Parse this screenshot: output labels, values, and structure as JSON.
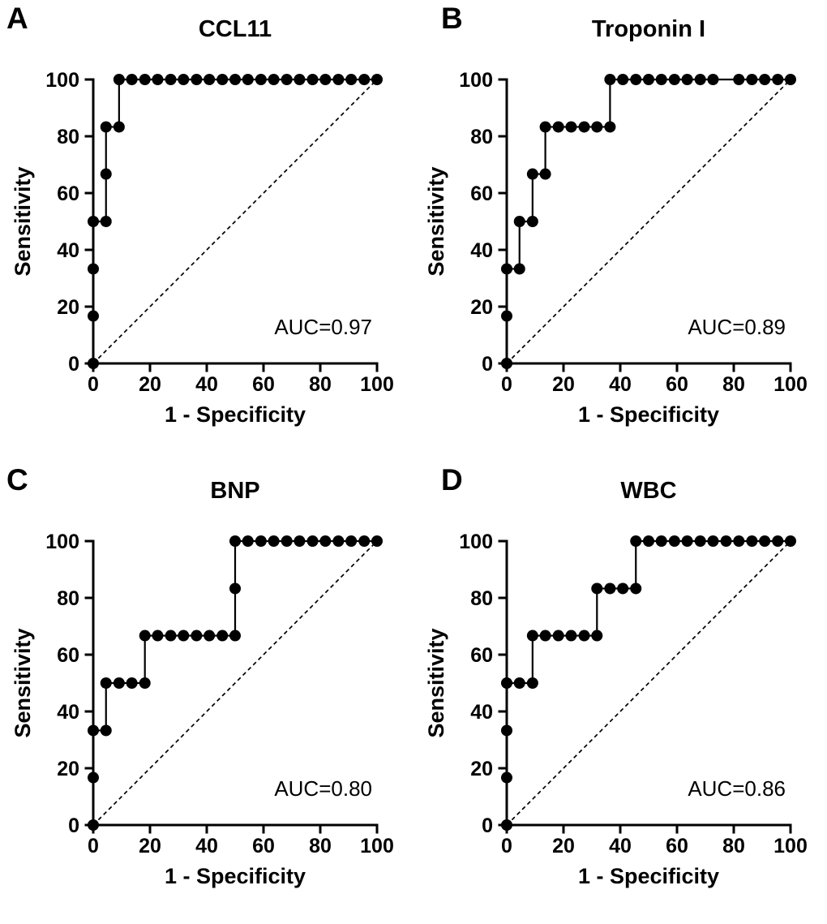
{
  "figure": {
    "background_color": "#ffffff",
    "ink_color": "#000000",
    "marker_color": "#000000",
    "panels": [
      "A",
      "B",
      "C",
      "D"
    ]
  },
  "chart_data": [
    {
      "type": "line",
      "subtype": "roc-curve",
      "panel_label": "A",
      "title": "CCL11",
      "xlabel": "1 - Specificity",
      "ylabel": "Sensitivity",
      "xlim": [
        0,
        100
      ],
      "ylim": [
        0,
        100
      ],
      "xticks": [
        0,
        20,
        40,
        60,
        80,
        100
      ],
      "yticks": [
        0,
        20,
        40,
        60,
        80,
        100
      ],
      "auc_label": "AUC=0.97",
      "auc_value": 0.97,
      "diagonal_reference": true,
      "marker": "filled-circle",
      "legend": "none",
      "grid": false,
      "roc_points": [
        [
          0,
          0
        ],
        [
          0,
          16.7
        ],
        [
          0,
          33.3
        ],
        [
          0,
          50
        ],
        [
          4.5,
          50
        ],
        [
          4.5,
          66.7
        ],
        [
          4.5,
          83.3
        ],
        [
          9.1,
          83.3
        ],
        [
          9.1,
          100
        ],
        [
          13.6,
          100
        ],
        [
          18.2,
          100
        ],
        [
          22.7,
          100
        ],
        [
          27.3,
          100
        ],
        [
          31.8,
          100
        ],
        [
          36.4,
          100
        ],
        [
          40.9,
          100
        ],
        [
          45.5,
          100
        ],
        [
          50,
          100
        ],
        [
          54.5,
          100
        ],
        [
          59.1,
          100
        ],
        [
          63.6,
          100
        ],
        [
          68.2,
          100
        ],
        [
          72.7,
          100
        ],
        [
          77.3,
          100
        ],
        [
          81.8,
          100
        ],
        [
          86.4,
          100
        ],
        [
          90.9,
          100
        ],
        [
          95.5,
          100
        ],
        [
          100,
          100
        ]
      ]
    },
    {
      "type": "line",
      "subtype": "roc-curve",
      "panel_label": "B",
      "title": "Troponin I",
      "xlabel": "1 - Specificity",
      "ylabel": "Sensitivity",
      "xlim": [
        0,
        100
      ],
      "ylim": [
        0,
        100
      ],
      "xticks": [
        0,
        20,
        40,
        60,
        80,
        100
      ],
      "yticks": [
        0,
        20,
        40,
        60,
        80,
        100
      ],
      "auc_label": "AUC=0.89",
      "auc_value": 0.89,
      "diagonal_reference": true,
      "marker": "filled-circle",
      "legend": "none",
      "grid": false,
      "roc_points": [
        [
          0,
          0
        ],
        [
          0,
          16.7
        ],
        [
          0,
          33.3
        ],
        [
          4.5,
          33.3
        ],
        [
          4.5,
          50
        ],
        [
          9.1,
          50
        ],
        [
          9.1,
          66.7
        ],
        [
          13.6,
          66.7
        ],
        [
          13.6,
          83.3
        ],
        [
          18.2,
          83.3
        ],
        [
          22.7,
          83.3
        ],
        [
          27.3,
          83.3
        ],
        [
          31.8,
          83.3
        ],
        [
          36.4,
          83.3
        ],
        [
          36.4,
          100
        ],
        [
          40.9,
          100
        ],
        [
          45.5,
          100
        ],
        [
          50,
          100
        ],
        [
          54.5,
          100
        ],
        [
          59.1,
          100
        ],
        [
          63.6,
          100
        ],
        [
          68.2,
          100
        ],
        [
          72.7,
          100
        ],
        [
          81.8,
          100
        ],
        [
          86.4,
          100
        ],
        [
          90.9,
          100
        ],
        [
          95.5,
          100
        ],
        [
          100,
          100
        ]
      ]
    },
    {
      "type": "line",
      "subtype": "roc-curve",
      "panel_label": "C",
      "title": "BNP",
      "xlabel": "1 - Specificity",
      "ylabel": "Sensitivity",
      "xlim": [
        0,
        100
      ],
      "ylim": [
        0,
        100
      ],
      "xticks": [
        0,
        20,
        40,
        60,
        80,
        100
      ],
      "yticks": [
        0,
        20,
        40,
        60,
        80,
        100
      ],
      "auc_label": "AUC=0.80",
      "auc_value": 0.8,
      "diagonal_reference": true,
      "marker": "filled-circle",
      "legend": "none",
      "grid": false,
      "roc_points": [
        [
          0,
          0
        ],
        [
          0,
          16.7
        ],
        [
          0,
          33.3
        ],
        [
          4.5,
          33.3
        ],
        [
          4.5,
          50
        ],
        [
          9.1,
          50
        ],
        [
          13.6,
          50
        ],
        [
          18.2,
          50
        ],
        [
          18.2,
          66.7
        ],
        [
          22.7,
          66.7
        ],
        [
          27.3,
          66.7
        ],
        [
          31.8,
          66.7
        ],
        [
          36.4,
          66.7
        ],
        [
          40.9,
          66.7
        ],
        [
          45.5,
          66.7
        ],
        [
          50,
          66.7
        ],
        [
          50,
          83.3
        ],
        [
          50,
          100
        ],
        [
          54.5,
          100
        ],
        [
          59.1,
          100
        ],
        [
          63.6,
          100
        ],
        [
          68.2,
          100
        ],
        [
          72.7,
          100
        ],
        [
          77.3,
          100
        ],
        [
          81.8,
          100
        ],
        [
          86.4,
          100
        ],
        [
          90.9,
          100
        ],
        [
          95.5,
          100
        ],
        [
          100,
          100
        ]
      ]
    },
    {
      "type": "line",
      "subtype": "roc-curve",
      "panel_label": "D",
      "title": "WBC",
      "xlabel": "1 - Specificity",
      "ylabel": "Sensitivity",
      "xlim": [
        0,
        100
      ],
      "ylim": [
        0,
        100
      ],
      "xticks": [
        0,
        20,
        40,
        60,
        80,
        100
      ],
      "yticks": [
        0,
        20,
        40,
        60,
        80,
        100
      ],
      "auc_label": "AUC=0.86",
      "auc_value": 0.86,
      "diagonal_reference": true,
      "marker": "filled-circle",
      "legend": "none",
      "grid": false,
      "roc_points": [
        [
          0,
          0
        ],
        [
          0,
          16.7
        ],
        [
          0,
          33.3
        ],
        [
          0,
          50
        ],
        [
          4.5,
          50
        ],
        [
          9.1,
          50
        ],
        [
          9.1,
          66.7
        ],
        [
          13.6,
          66.7
        ],
        [
          18.2,
          66.7
        ],
        [
          22.7,
          66.7
        ],
        [
          27.3,
          66.7
        ],
        [
          31.8,
          66.7
        ],
        [
          31.8,
          83.3
        ],
        [
          36.4,
          83.3
        ],
        [
          40.9,
          83.3
        ],
        [
          45.5,
          83.3
        ],
        [
          45.5,
          100
        ],
        [
          50,
          100
        ],
        [
          54.5,
          100
        ],
        [
          59.1,
          100
        ],
        [
          63.6,
          100
        ],
        [
          68.2,
          100
        ],
        [
          72.7,
          100
        ],
        [
          77.3,
          100
        ],
        [
          81.8,
          100
        ],
        [
          86.4,
          100
        ],
        [
          90.9,
          100
        ],
        [
          95.5,
          100
        ],
        [
          100,
          100
        ]
      ]
    }
  ]
}
